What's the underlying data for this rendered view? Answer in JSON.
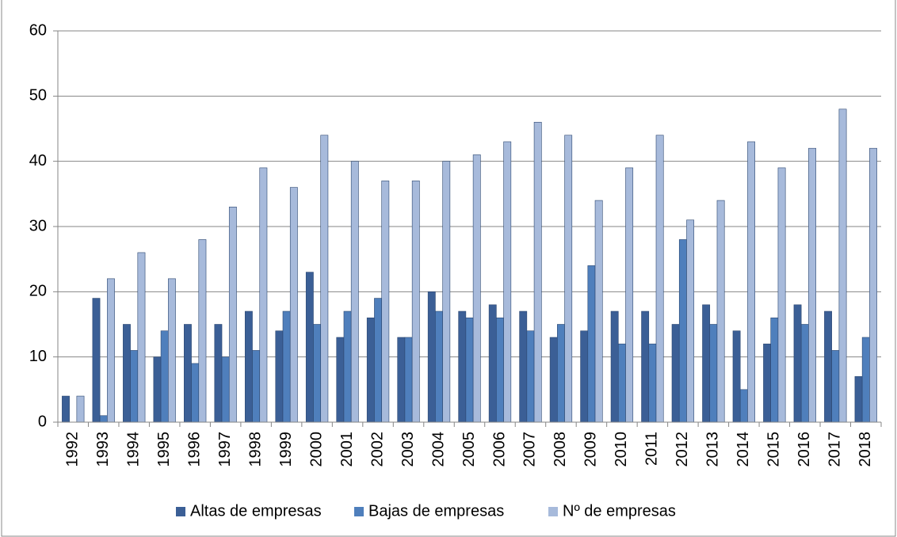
{
  "chart_data": {
    "type": "bar",
    "categories": [
      "1992",
      "1993",
      "1994",
      "1995",
      "1996",
      "1997",
      "1998",
      "1999",
      "2000",
      "2001",
      "2002",
      "2003",
      "2004",
      "2005",
      "2006",
      "2007",
      "2008",
      "2009",
      "2010",
      "2011",
      "2012",
      "2013",
      "2014",
      "2015",
      "2016",
      "2017",
      "2018"
    ],
    "series": [
      {
        "name": "Altas de empresas",
        "color": "#3b5f96",
        "values": [
          4,
          19,
          15,
          10,
          15,
          15,
          17,
          14,
          23,
          13,
          16,
          13,
          20,
          17,
          18,
          17,
          13,
          14,
          17,
          17,
          15,
          18,
          14,
          12,
          18,
          17,
          7
        ]
      },
      {
        "name": "Bajas de empresas",
        "color": "#4f7fbc",
        "values": [
          0,
          1,
          11,
          14,
          9,
          10,
          11,
          17,
          15,
          17,
          19,
          13,
          17,
          16,
          16,
          14,
          15,
          24,
          12,
          12,
          28,
          15,
          5,
          16,
          15,
          11,
          13
        ]
      },
      {
        "name": "Nº de empresas",
        "color": "#a7badb",
        "values": [
          4,
          22,
          26,
          22,
          28,
          33,
          39,
          36,
          44,
          40,
          37,
          37,
          40,
          41,
          43,
          46,
          44,
          34,
          39,
          44,
          31,
          34,
          43,
          39,
          42,
          48,
          42
        ]
      }
    ],
    "ylim": [
      0,
      60
    ],
    "yticks": [
      0,
      10,
      20,
      30,
      40,
      50,
      60
    ],
    "grid": true,
    "legend": "bottom"
  }
}
